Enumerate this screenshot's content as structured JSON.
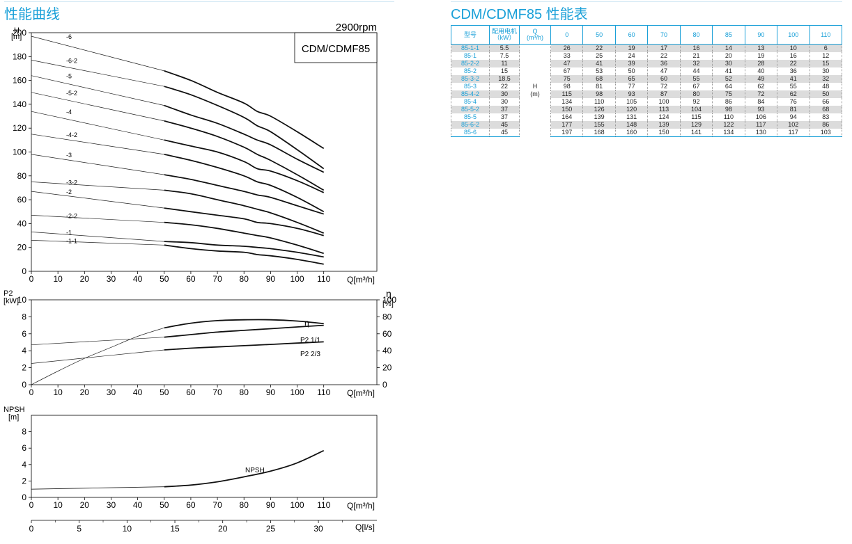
{
  "left_title": "性能曲线",
  "right_title": "CDM/CDMF85 性能表",
  "chart_data": [
    {
      "type": "line",
      "name": "H-Q curves",
      "title": "CDM/CDMF85",
      "subtitle": "2900rpm",
      "ylabel": "H",
      "yunit": "[m]",
      "xlabel": "Q[m³/h]",
      "xlim": [
        0,
        130
      ],
      "ylim": [
        0,
        200
      ],
      "xticks": [
        0,
        10,
        20,
        30,
        40,
        50,
        60,
        70,
        80,
        90,
        100,
        110
      ],
      "yticks": [
        0,
        20,
        40,
        60,
        80,
        100,
        120,
        140,
        160,
        180,
        200
      ],
      "grid": false,
      "series": [
        {
          "name": "-6",
          "x": [
            0,
            50,
            60,
            70,
            80,
            85,
            90,
            100,
            110
          ],
          "values": [
            197,
            168,
            160,
            150,
            141,
            134,
            130,
            117,
            103
          ]
        },
        {
          "name": "-6-2",
          "x": [
            0,
            50,
            60,
            70,
            80,
            85,
            90,
            100,
            110
          ],
          "values": [
            177,
            155,
            148,
            139,
            129,
            122,
            117,
            102,
            86
          ]
        },
        {
          "name": "-5",
          "x": [
            0,
            50,
            60,
            70,
            80,
            85,
            90,
            100,
            110
          ],
          "values": [
            164,
            139,
            131,
            124,
            115,
            110,
            106,
            94,
            83
          ]
        },
        {
          "name": "-5-2",
          "x": [
            0,
            50,
            60,
            70,
            80,
            85,
            90,
            100,
            110
          ],
          "values": [
            150,
            126,
            120,
            113,
            104,
            98,
            93,
            81,
            68
          ]
        },
        {
          "name": "-4",
          "x": [
            0,
            50,
            60,
            70,
            80,
            85,
            90,
            100,
            110
          ],
          "values": [
            134,
            110,
            105,
            100,
            92,
            86,
            84,
            76,
            66
          ]
        },
        {
          "name": "-4-2",
          "x": [
            0,
            50,
            60,
            70,
            80,
            85,
            90,
            100,
            110
          ],
          "values": [
            115,
            98,
            93,
            87,
            80,
            75,
            72,
            62,
            50
          ]
        },
        {
          "name": "-3",
          "x": [
            0,
            50,
            60,
            70,
            80,
            85,
            90,
            100,
            110
          ],
          "values": [
            98,
            81,
            77,
            72,
            67,
            64,
            62,
            55,
            48
          ]
        },
        {
          "name": "-3-2",
          "x": [
            0,
            50,
            60,
            70,
            80,
            85,
            90,
            100,
            110
          ],
          "values": [
            75,
            68,
            65,
            60,
            55,
            52,
            49,
            41,
            32
          ]
        },
        {
          "name": "-2",
          "x": [
            0,
            50,
            60,
            70,
            80,
            85,
            90,
            100,
            110
          ],
          "values": [
            67,
            53,
            50,
            47,
            44,
            41,
            40,
            36,
            30
          ]
        },
        {
          "name": "-2-2",
          "x": [
            0,
            50,
            60,
            70,
            80,
            85,
            90,
            100,
            110
          ],
          "values": [
            47,
            41,
            39,
            36,
            32,
            30,
            28,
            22,
            15
          ]
        },
        {
          "name": "-1",
          "x": [
            0,
            50,
            60,
            70,
            80,
            85,
            90,
            100,
            110
          ],
          "values": [
            33,
            25,
            24,
            22,
            21,
            20,
            19,
            16,
            12
          ]
        },
        {
          "name": "-1-1",
          "x": [
            0,
            50,
            60,
            70,
            80,
            85,
            90,
            100,
            110
          ],
          "values": [
            26,
            22,
            19,
            17,
            16,
            14,
            13,
            10,
            6
          ]
        }
      ]
    },
    {
      "type": "line",
      "name": "P2 / efficiency",
      "ylabel": "P2",
      "yunit": "[kW]",
      "y2label": "η",
      "y2unit": "[%]",
      "xlabel": "Q[m³/h]",
      "xlim": [
        0,
        130
      ],
      "ylim": [
        0,
        10
      ],
      "y2lim": [
        0,
        100
      ],
      "xticks": [
        0,
        10,
        20,
        30,
        40,
        50,
        60,
        70,
        80,
        90,
        100,
        110
      ],
      "yticks": [
        0,
        2,
        4,
        6,
        8,
        10
      ],
      "y2ticks": [
        0,
        20,
        40,
        60,
        80,
        100
      ],
      "series": [
        {
          "name": "η",
          "axis": "right",
          "x": [
            0,
            10,
            20,
            30,
            40,
            50,
            60,
            70,
            80,
            90,
            100,
            110
          ],
          "values": [
            0,
            16,
            31,
            44,
            57,
            67,
            72.5,
            75.5,
            76.5,
            76.5,
            75,
            72
          ]
        },
        {
          "name": "P2 1/1",
          "axis": "left",
          "x": [
            0,
            50,
            60,
            70,
            80,
            90,
            100,
            110
          ],
          "values": [
            4.7,
            5.6,
            5.9,
            6.2,
            6.4,
            6.6,
            6.8,
            7.0
          ]
        },
        {
          "name": "P2 2/3",
          "axis": "left",
          "x": [
            0,
            50,
            60,
            70,
            80,
            90,
            100,
            110
          ],
          "values": [
            2.5,
            4.1,
            4.3,
            4.45,
            4.6,
            4.75,
            4.9,
            5.05
          ]
        }
      ]
    },
    {
      "type": "line",
      "name": "NPSH",
      "ylabel": "NPSH",
      "yunit": "[m]",
      "xlabel": "Q[m³/h]",
      "xlim": [
        0,
        130
      ],
      "ylim": [
        0,
        10
      ],
      "xticks": [
        0,
        10,
        20,
        30,
        40,
        50,
        60,
        70,
        80,
        90,
        100,
        110
      ],
      "yticks": [
        0,
        2,
        4,
        6,
        8
      ],
      "secondary_x": {
        "label": "Q[l/s]",
        "ticks": [
          0,
          5,
          10,
          15,
          20,
          25,
          30
        ],
        "scale_m3h_per_unit": 3.6
      },
      "series": [
        {
          "name": "NPSH",
          "x": [
            0,
            50,
            60,
            70,
            80,
            90,
            100,
            110
          ],
          "values": [
            1.0,
            1.3,
            1.5,
            1.9,
            2.5,
            3.2,
            4.2,
            5.7
          ]
        }
      ]
    }
  ],
  "table": {
    "headers": {
      "model": "型号",
      "motor": "配用电机",
      "motor_unit": "（kW）",
      "q": "Q",
      "q_unit": "(m³/h)"
    },
    "flows": [
      "0",
      "50",
      "60",
      "70",
      "80",
      "85",
      "90",
      "100",
      "110"
    ],
    "h_label": "H",
    "h_unit": "(m)",
    "rows": [
      {
        "model": "85-1-1",
        "kw": "5.5",
        "h": [
          "26",
          "22",
          "19",
          "17",
          "16",
          "14",
          "13",
          "10",
          "6"
        ]
      },
      {
        "model": "85-1",
        "kw": "7.5",
        "h": [
          "33",
          "25",
          "24",
          "22",
          "21",
          "20",
          "19",
          "16",
          "12"
        ]
      },
      {
        "model": "85-2-2",
        "kw": "11",
        "h": [
          "47",
          "41",
          "39",
          "36",
          "32",
          "30",
          "28",
          "22",
          "15"
        ]
      },
      {
        "model": "85-2",
        "kw": "15",
        "h": [
          "67",
          "53",
          "50",
          "47",
          "44",
          "41",
          "40",
          "36",
          "30"
        ]
      },
      {
        "model": "85-3-2",
        "kw": "18.5",
        "h": [
          "75",
          "68",
          "65",
          "60",
          "55",
          "52",
          "49",
          "41",
          "32"
        ]
      },
      {
        "model": "85-3",
        "kw": "22",
        "h": [
          "98",
          "81",
          "77",
          "72",
          "67",
          "64",
          "62",
          "55",
          "48"
        ]
      },
      {
        "model": "85-4-2",
        "kw": "30",
        "h": [
          "115",
          "98",
          "93",
          "87",
          "80",
          "75",
          "72",
          "62",
          "50"
        ]
      },
      {
        "model": "85-4",
        "kw": "30",
        "h": [
          "134",
          "110",
          "105",
          "100",
          "92",
          "86",
          "84",
          "76",
          "66"
        ]
      },
      {
        "model": "85-5-2",
        "kw": "37",
        "h": [
          "150",
          "126",
          "120",
          "113",
          "104",
          "98",
          "93",
          "81",
          "68"
        ]
      },
      {
        "model": "85-5",
        "kw": "37",
        "h": [
          "164",
          "139",
          "131",
          "124",
          "115",
          "110",
          "106",
          "94",
          "83"
        ]
      },
      {
        "model": "85-6-2",
        "kw": "45",
        "h": [
          "177",
          "155",
          "148",
          "139",
          "129",
          "122",
          "117",
          "102",
          "86"
        ]
      },
      {
        "model": "85-6",
        "kw": "45",
        "h": [
          "197",
          "168",
          "160",
          "150",
          "141",
          "134",
          "130",
          "117",
          "103"
        ]
      }
    ]
  }
}
